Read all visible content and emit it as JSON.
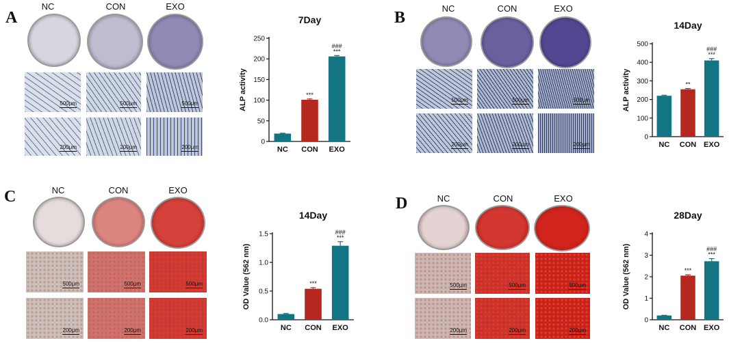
{
  "colors": {
    "nc": "#137584",
    "con": "#b5281f",
    "exo": "#137584",
    "alp_stain": "#4b3f8c",
    "ars_stain": "#d0241c"
  },
  "panels": [
    {
      "letter": "A",
      "stain": "alp",
      "group_labels": [
        "NC",
        "CON",
        "EXO"
      ],
      "dish_tints": [
        0.1,
        0.25,
        0.55
      ],
      "scale_bars": [
        [
          "500μm",
          "500μm",
          "500μm"
        ],
        [
          "200μm",
          "200μm",
          "200μm"
        ]
      ]
    },
    {
      "letter": "B",
      "stain": "alp",
      "group_labels": [
        "NC",
        "CON",
        "EXO"
      ],
      "dish_tints": [
        0.55,
        0.8,
        0.95
      ],
      "scale_bars": [
        [
          "500μm",
          "500μm",
          "500μm"
        ],
        [
          "200μm",
          "200μm",
          "200μm"
        ]
      ]
    },
    {
      "letter": "C",
      "stain": "ars",
      "group_labels": [
        "NC",
        "CON",
        "EXO"
      ],
      "dish_tints": [
        0.05,
        0.5,
        0.85
      ],
      "scale_bars": [
        [
          "500μm",
          "500μm",
          "500μm"
        ],
        [
          "200μm",
          "200μm",
          "200μm"
        ]
      ]
    },
    {
      "letter": "D",
      "stain": "ars",
      "group_labels": [
        "NC",
        "CON",
        "EXO"
      ],
      "dish_tints": [
        0.1,
        0.9,
        1.0
      ],
      "scale_bars": [
        [
          "500μm",
          "500μm",
          "500μm"
        ],
        [
          "200μm",
          "200μm",
          "200μm"
        ]
      ]
    }
  ],
  "chart_data": [
    {
      "type": "bar",
      "title": "7Day",
      "ylabel": "ALP  activity",
      "categories": [
        "NC",
        "CON",
        "EXO"
      ],
      "values": [
        19,
        101,
        206
      ],
      "errors": [
        1,
        2,
        2
      ],
      "ylim": [
        0,
        250
      ],
      "yticks": [
        "0",
        "50",
        "100",
        "150",
        "200",
        "250"
      ],
      "significance": [
        [],
        [
          "***"
        ],
        [
          "###",
          "***"
        ]
      ]
    },
    {
      "type": "bar",
      "title": "14Day",
      "ylabel": "ALP  activity",
      "categories": [
        "NC",
        "CON",
        "EXO"
      ],
      "values": [
        220,
        255,
        410
      ],
      "errors": [
        3,
        4,
        10
      ],
      "ylim": [
        0,
        500
      ],
      "yticks": [
        "0",
        "100",
        "200",
        "300",
        "400",
        "500"
      ],
      "significance": [
        [],
        [
          "**"
        ],
        [
          "###",
          "***"
        ]
      ]
    },
    {
      "type": "bar",
      "title": "14Day",
      "ylabel": "OD Value (562 nm)",
      "categories": [
        "NC",
        "CON",
        "EXO"
      ],
      "values": [
        0.1,
        0.54,
        1.29
      ],
      "errors": [
        0.01,
        0.02,
        0.07
      ],
      "ylim": [
        0,
        1.5
      ],
      "yticks": [
        "0.0",
        "0.5",
        "1.0",
        "1.5"
      ],
      "significance": [
        [],
        [
          "***"
        ],
        [
          "###",
          "***"
        ]
      ]
    },
    {
      "type": "bar",
      "title": "28Day",
      "ylabel": "OD Value (562 nm)",
      "categories": [
        "NC",
        "CON",
        "EXO"
      ],
      "values": [
        0.2,
        2.05,
        2.72
      ],
      "errors": [
        0.01,
        0.04,
        0.12
      ],
      "ylim": [
        0,
        4
      ],
      "yticks": [
        "0",
        "1",
        "2",
        "3",
        "4"
      ],
      "significance": [
        [],
        [
          "***"
        ],
        [
          "###",
          "***"
        ]
      ]
    }
  ]
}
